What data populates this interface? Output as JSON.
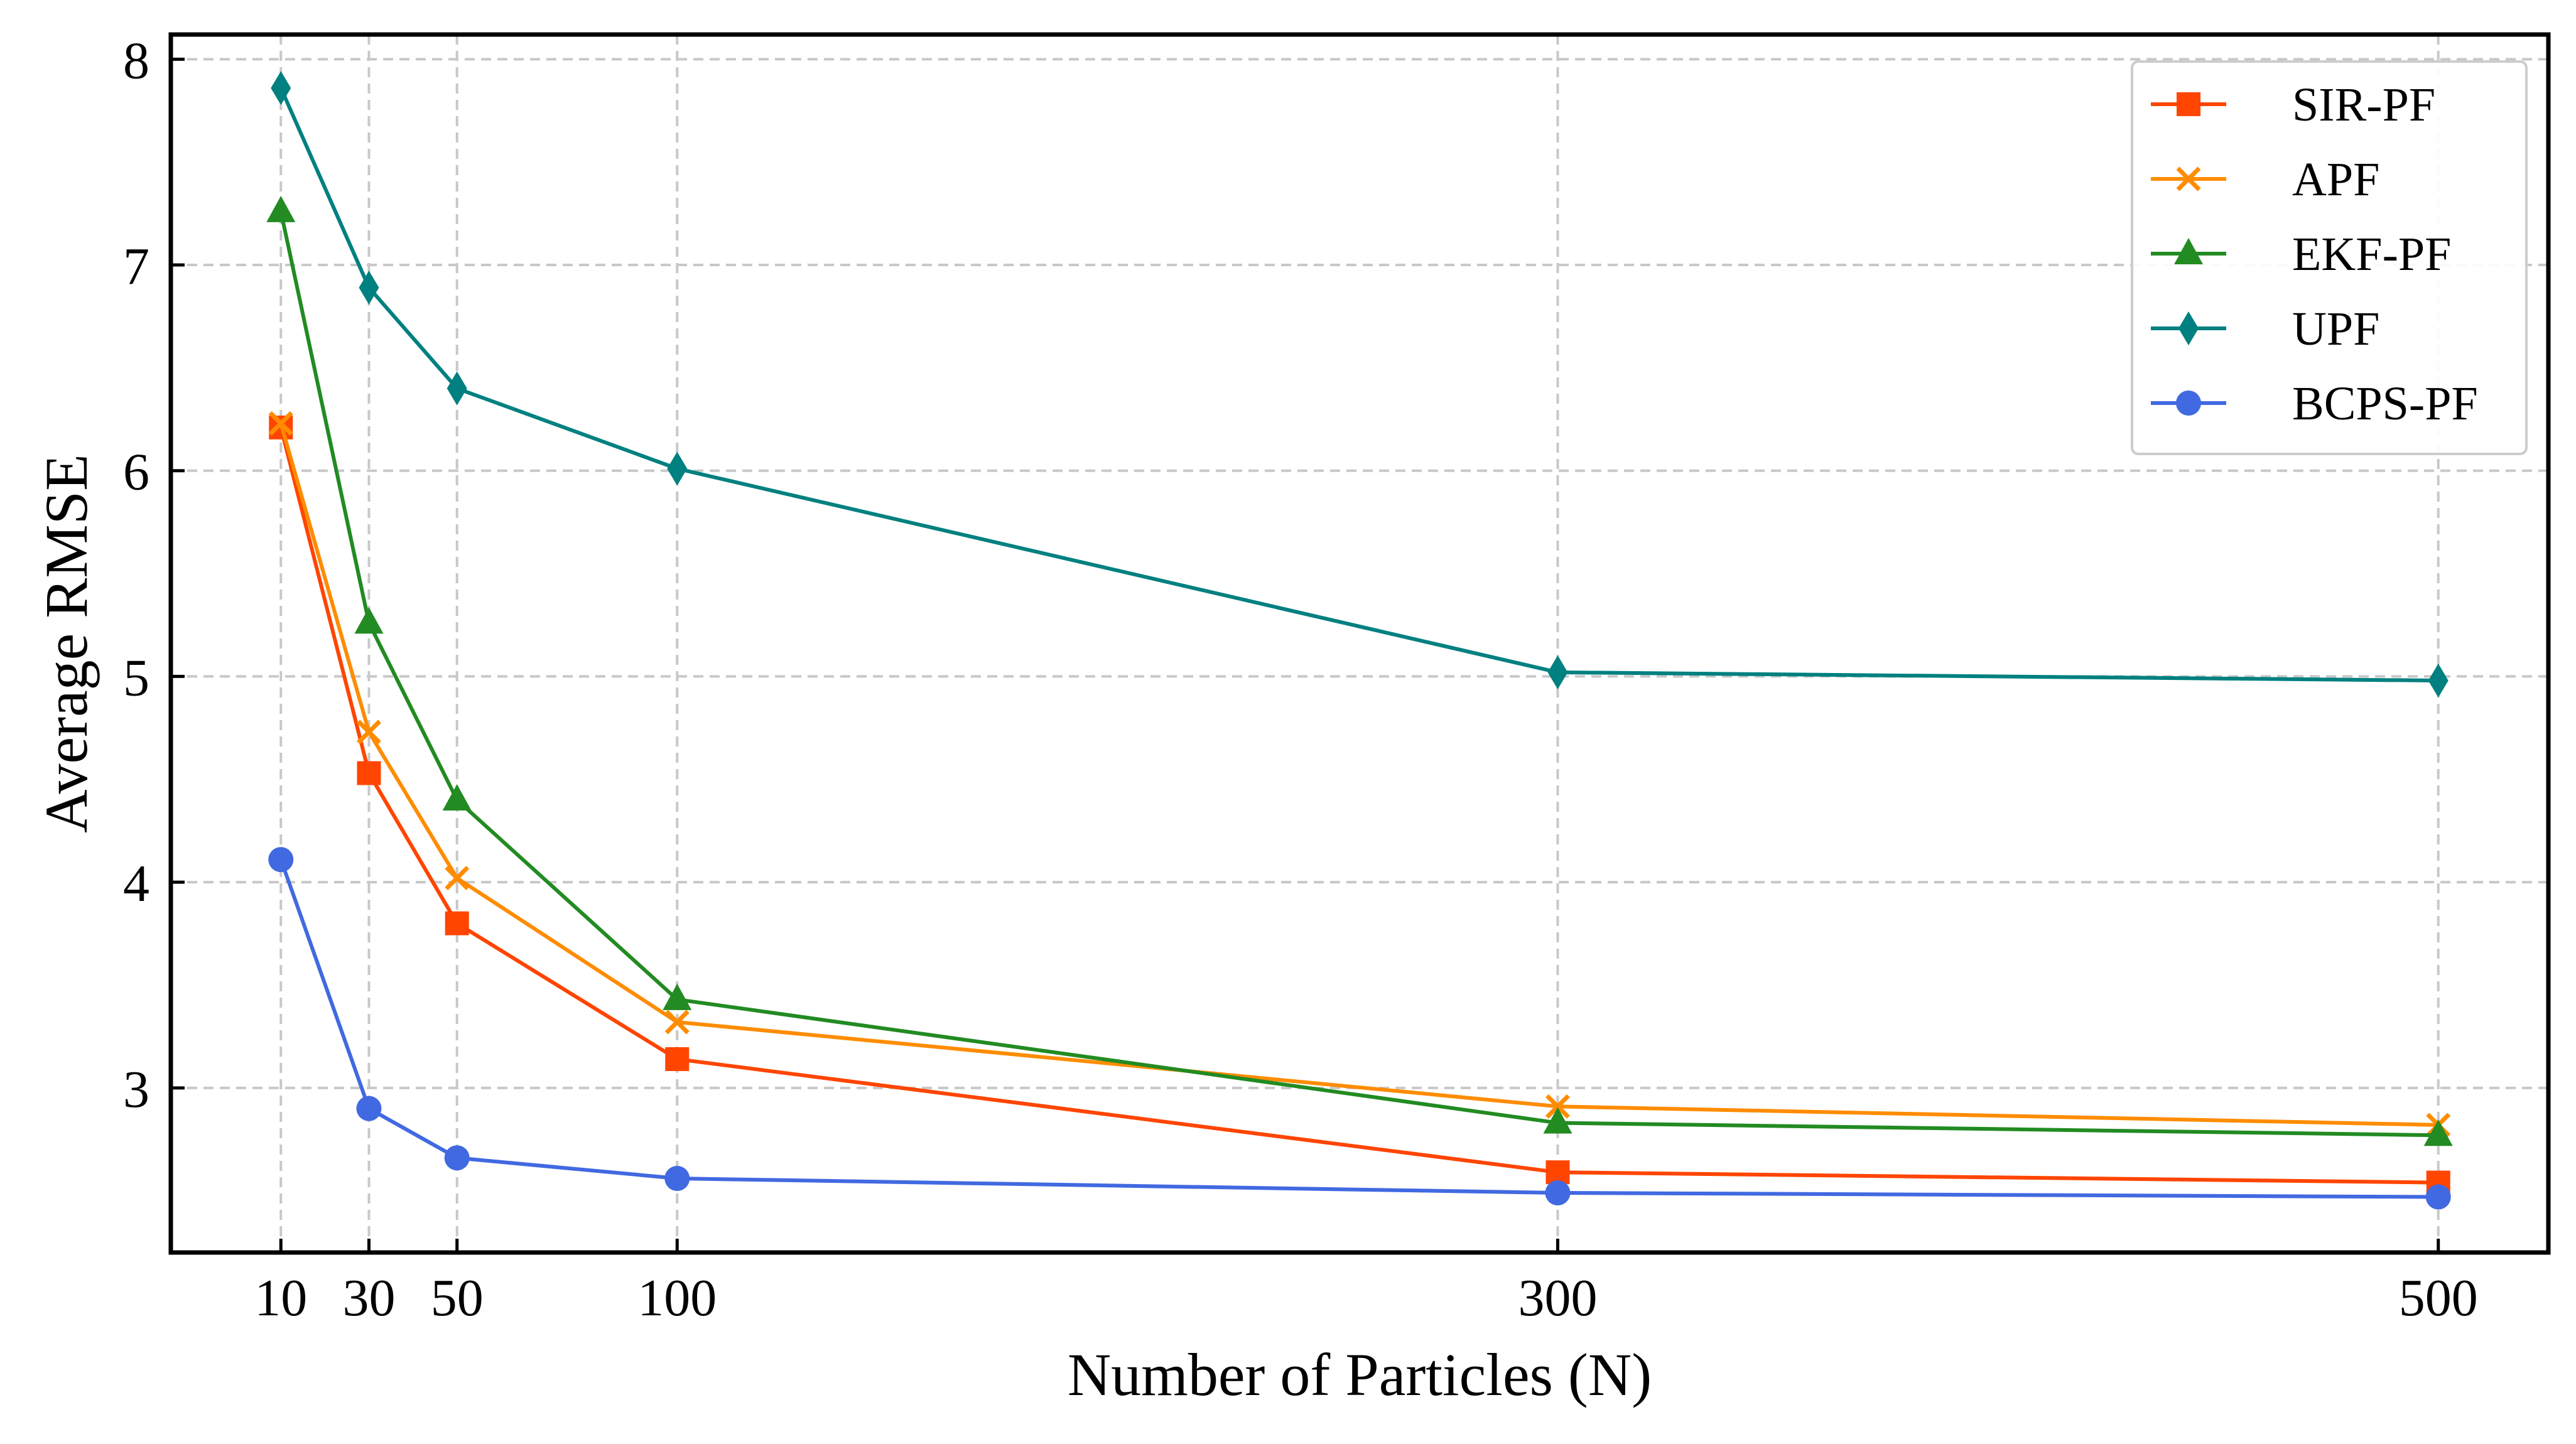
{
  "chart_data": {
    "type": "line",
    "title": "",
    "xlabel": "Number of Particles (N)",
    "ylabel": "Average RMSE",
    "x": [
      10,
      30,
      50,
      100,
      300,
      500
    ],
    "xticks": [
      10,
      30,
      50,
      100,
      300,
      500
    ],
    "yticks": [
      3,
      4,
      5,
      6,
      7,
      8
    ],
    "xlim": [
      -15,
      525
    ],
    "ylim": [
      2.2,
      8.12
    ],
    "grid": true,
    "legend_position": "top-right",
    "series": [
      {
        "name": "SIR-PF",
        "color": "#ff4500",
        "marker": "square",
        "values": [
          6.21,
          4.53,
          3.8,
          3.14,
          2.59,
          2.54
        ]
      },
      {
        "name": "APF",
        "color": "#ff8c00",
        "marker": "x",
        "values": [
          6.23,
          4.73,
          4.02,
          3.32,
          2.91,
          2.82
        ]
      },
      {
        "name": "EKF-PF",
        "color": "#228b22",
        "marker": "triangle",
        "values": [
          7.26,
          5.26,
          4.4,
          3.43,
          2.83,
          2.77
        ]
      },
      {
        "name": "UPF",
        "color": "#008080",
        "marker": "diamond",
        "values": [
          7.86,
          6.89,
          6.4,
          6.01,
          5.02,
          4.98
        ]
      },
      {
        "name": "BCPS-PF",
        "color": "#4169e1",
        "marker": "circle",
        "values": [
          4.11,
          2.9,
          2.66,
          2.56,
          2.49,
          2.47
        ]
      }
    ]
  }
}
